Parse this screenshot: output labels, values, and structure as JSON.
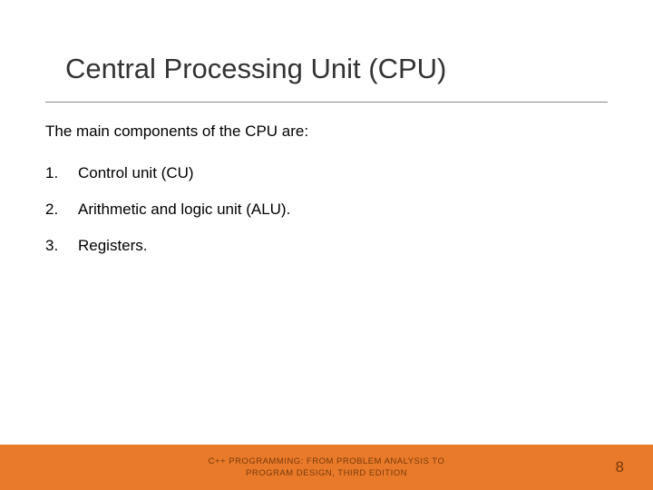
{
  "title": "Central Processing Unit (CPU)",
  "subtitle": "The main components of the CPU are:",
  "items": [
    {
      "num": "1.",
      "text": "Control unit (CU)"
    },
    {
      "num": "2.",
      "text": "Arithmetic and logic unit (ALU)."
    },
    {
      "num": "3.",
      "text": "Registers."
    }
  ],
  "footer": {
    "line1": "C++ PROGRAMMING: FROM PROBLEM ANALYSIS TO",
    "line2": "PROGRAM DESIGN, THIRD EDITION"
  },
  "page_number": "8",
  "colors": {
    "accent": "#e87a2a",
    "text": "#000000",
    "title": "#333333",
    "footer_text": "#7a3a0a"
  }
}
